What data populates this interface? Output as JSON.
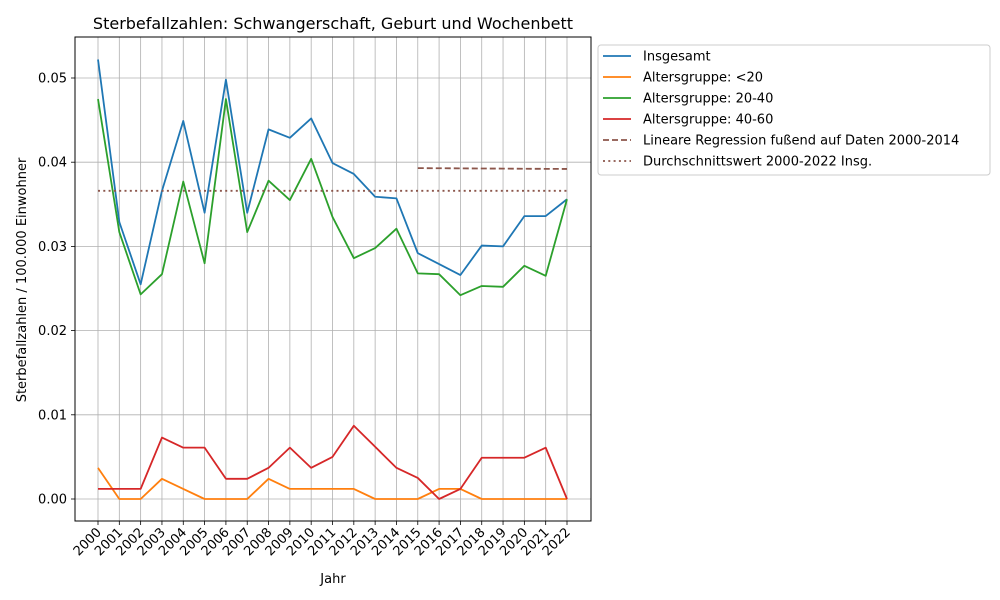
{
  "chart_data": {
    "type": "line",
    "title": "Sterbefallzahlen: Schwangerschaft, Geburt und Wochenbett",
    "xlabel": "Jahr",
    "ylabel": "Sterbefallzahlen / 100.000 Einwohner",
    "ylim": [
      -0.0026,
      0.0549
    ],
    "yticks": [
      0.0,
      0.01,
      0.02,
      0.03,
      0.04,
      0.05
    ],
    "ytick_labels": [
      "0.00",
      "0.01",
      "0.02",
      "0.03",
      "0.04",
      "0.05"
    ],
    "grid": true,
    "legend_position": "outside upper right",
    "x": [
      "2000",
      "2001",
      "2002",
      "2003",
      "2004",
      "2005",
      "2006",
      "2007",
      "2008",
      "2009",
      "2010",
      "2011",
      "2012",
      "2013",
      "2014",
      "2015",
      "2016",
      "2017",
      "2018",
      "2019",
      "2020",
      "2021",
      "2022"
    ],
    "series": [
      {
        "name": "Insgesamt",
        "color": "#1f77b4",
        "style": "solid",
        "values": [
          0.0522,
          0.0329,
          0.0255,
          0.0366,
          0.0449,
          0.034,
          0.0498,
          0.034,
          0.0439,
          0.0429,
          0.0452,
          0.0399,
          0.0386,
          0.0359,
          0.0357,
          0.0292,
          0.0279,
          0.0266,
          0.0301,
          0.03,
          0.0336,
          0.0336,
          0.0356
        ]
      },
      {
        "name": "Altersgruppe: <20",
        "color": "#ff7f0e",
        "style": "solid",
        "values": [
          0.0037,
          0.0,
          0.0,
          0.0024,
          0.0012,
          0.0,
          0.0,
          0.0,
          0.0024,
          0.0012,
          0.0012,
          0.0012,
          0.0012,
          0.0,
          0.0,
          0.0,
          0.0012,
          0.0012,
          0.0,
          0.0,
          0.0,
          0.0,
          0.0
        ]
      },
      {
        "name": "Altersgruppe: 20-40",
        "color": "#2ca02c",
        "style": "solid",
        "values": [
          0.0475,
          0.0317,
          0.0243,
          0.0267,
          0.0377,
          0.028,
          0.0475,
          0.0317,
          0.0378,
          0.0355,
          0.0404,
          0.0335,
          0.0286,
          0.0298,
          0.0321,
          0.0268,
          0.0267,
          0.0242,
          0.0253,
          0.0252,
          0.0277,
          0.0265,
          0.0356
        ]
      },
      {
        "name": "Altersgruppe: 40-60",
        "color": "#d62728",
        "style": "solid",
        "values": [
          0.0012,
          0.0012,
          0.0012,
          0.0073,
          0.0061,
          0.0061,
          0.0024,
          0.0024,
          0.0037,
          0.0061,
          0.0037,
          0.005,
          0.0087,
          0.0062,
          0.0037,
          0.0025,
          0.0,
          0.0012,
          0.0049,
          0.0049,
          0.0049,
          0.0061,
          0.0
        ]
      },
      {
        "name": "Lineare Regression fußend auf Daten 2000-2014",
        "color": "#8c564b",
        "style": "dashed",
        "x_range": [
          "2015",
          "2022"
        ],
        "values": [
          0.0393,
          0.03928,
          0.03927,
          0.03925,
          0.03924,
          0.03922,
          0.03921,
          0.0392
        ]
      },
      {
        "name": "Durchschnittswert 2000-2022 Insg.",
        "color": "#8c564b",
        "style": "dotted",
        "x_range": [
          "2000",
          "2022"
        ],
        "values": [
          0.0366,
          0.0366
        ]
      }
    ]
  }
}
